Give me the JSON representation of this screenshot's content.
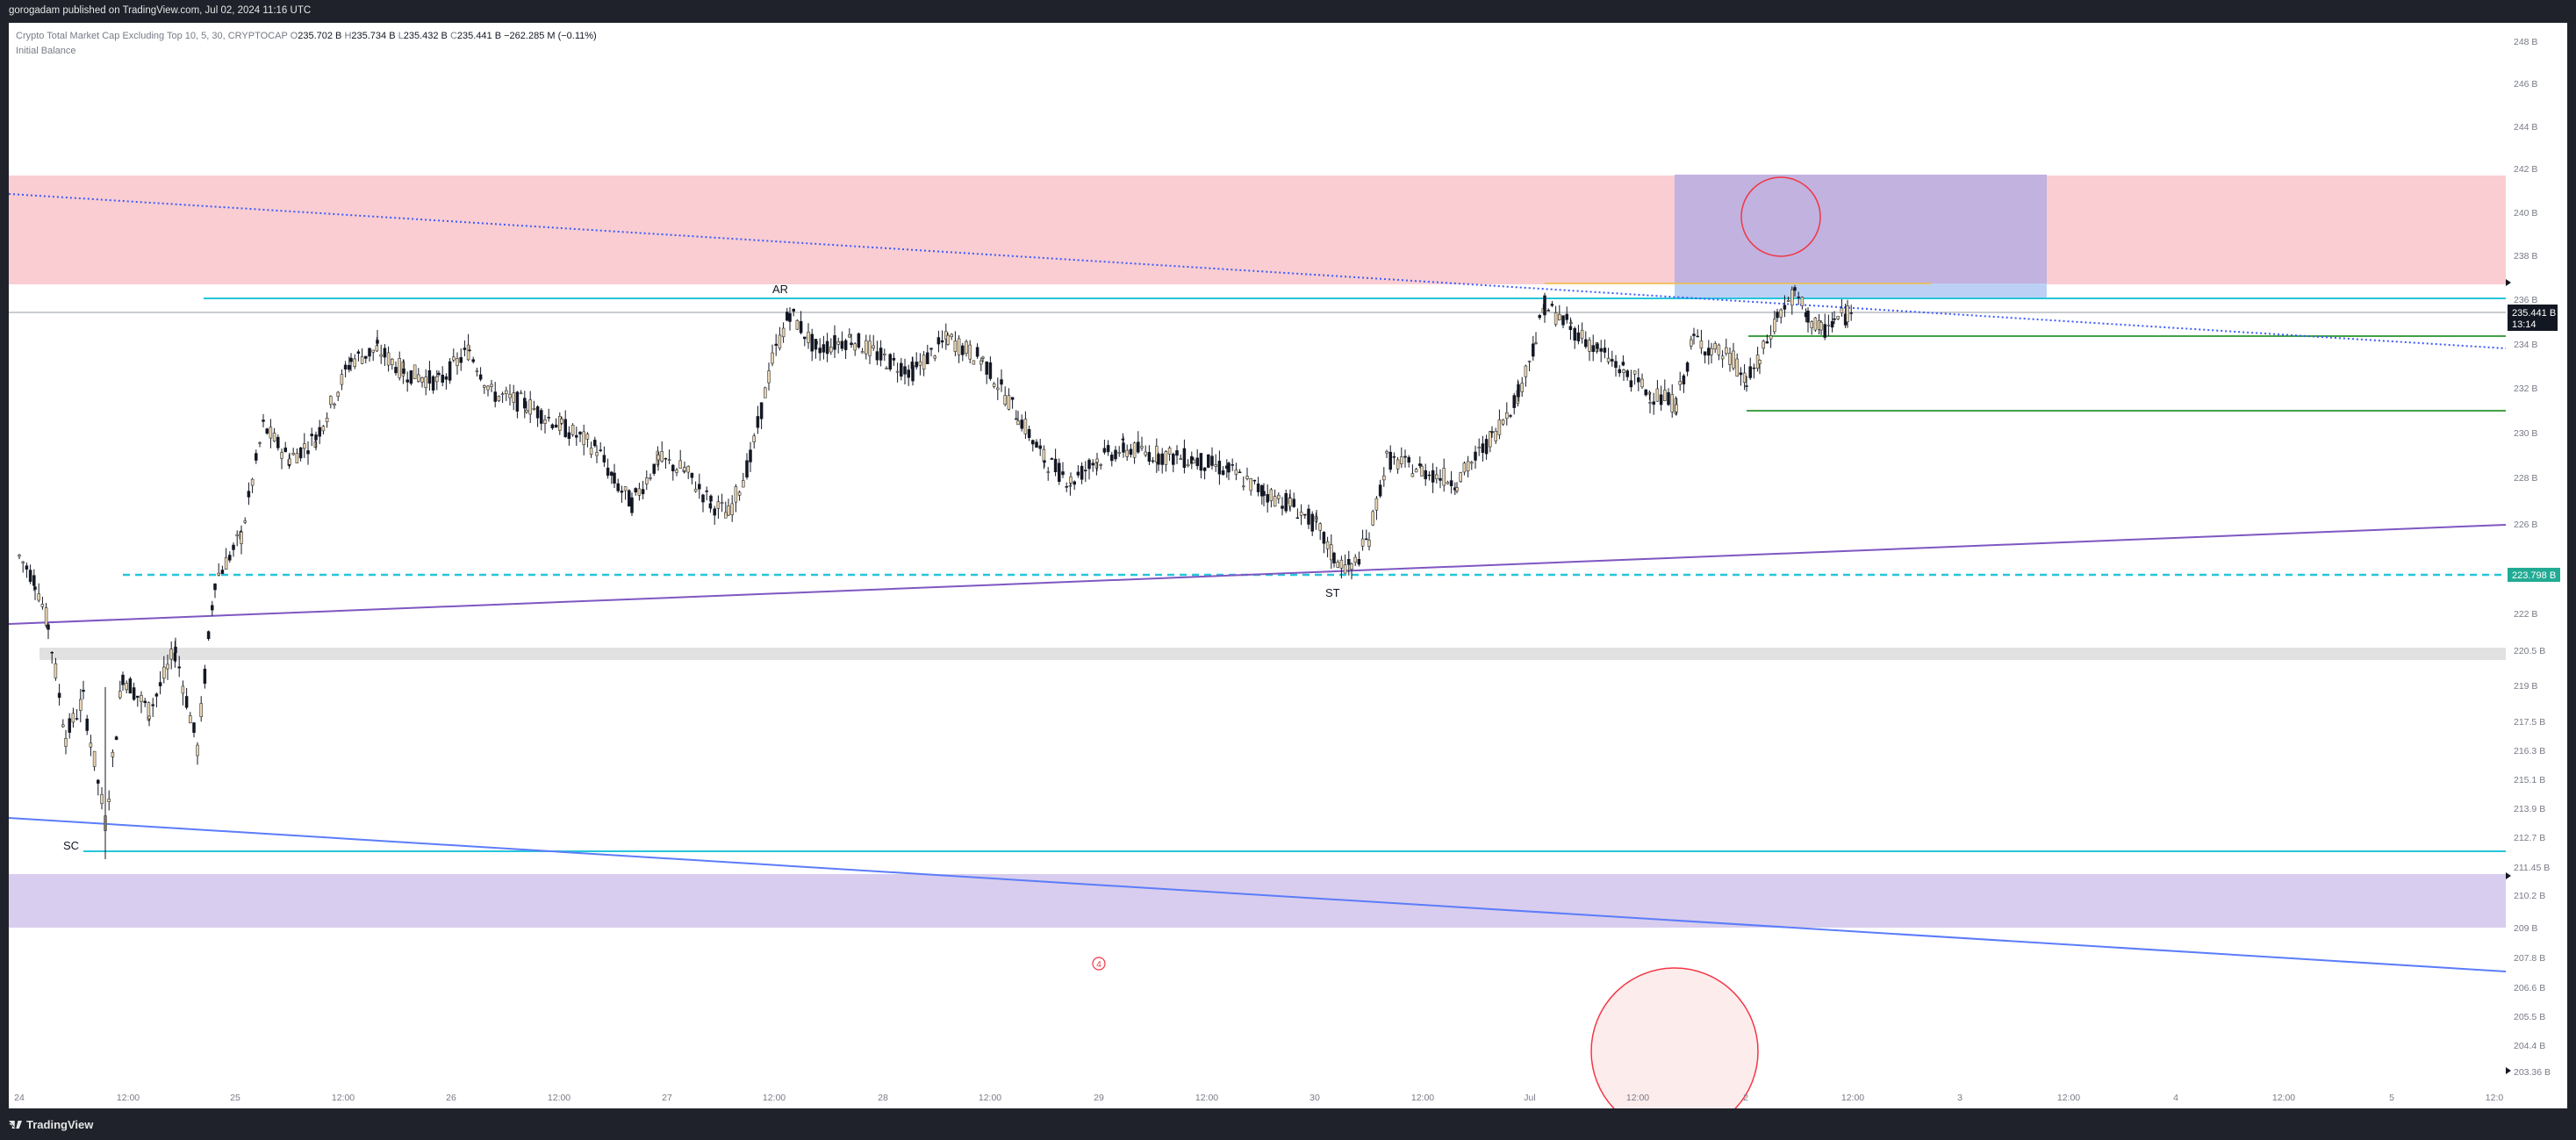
{
  "header": {
    "attribution": "gorogadam published on TradingView.com, Jul 02, 2024 11:16 UTC"
  },
  "legend": {
    "symbol": "Crypto Total Market Cap Excluding Top 10, 5, 30, CRYPTOCAP",
    "open_label": "O",
    "open": "235.702 B",
    "high_label": "H",
    "high": "235.734 B",
    "low_label": "L",
    "low": "235.432 B",
    "close_label": "C",
    "close": "235.441 B",
    "change": "−262.285 M (−0.11%)",
    "indicator": "Initial Balance"
  },
  "price_axis": {
    "ticks": [
      "248 B",
      "246 B",
      "244 B",
      "242 B",
      "240 B",
      "238 B",
      "236 B",
      "234 B",
      "232 B",
      "230 B",
      "228 B",
      "226 B",
      "222 B",
      "220.5 B",
      "219 B",
      "217.5 B",
      "216.3 B",
      "215.1 B",
      "213.9 B",
      "212.7 B",
      "211.45 B",
      "210.2 B",
      "209 B",
      "207.8 B",
      "206.6 B",
      "205.5 B",
      "204.4 B",
      "203.36 B"
    ],
    "current_price": "235.441 B",
    "countdown": "13:14",
    "level_label": "223.798 B"
  },
  "time_axis": {
    "ticks": [
      "24",
      "12:00",
      "25",
      "12:00",
      "26",
      "12:00",
      "27",
      "12:00",
      "28",
      "12:00",
      "29",
      "12:00",
      "30",
      "12:00",
      "Jul",
      "12:00",
      "2",
      "12:00",
      "3",
      "12:00",
      "4",
      "12:00",
      "5",
      "12:0"
    ]
  },
  "annotations": {
    "ar": "AR",
    "st": "ST",
    "sc": "SC",
    "circle_num": "4"
  },
  "footer": {
    "brand": "TradingView"
  },
  "colors": {
    "resistance_zone": "#f9cdd1",
    "support_zone": "#d8cdee",
    "blue_box": "#c0b1de",
    "range_line": "#26c6da",
    "green_level": "#43a047",
    "trend_upper": "#3d5afe",
    "trend_lower": "#7e57c2",
    "candle": "#131722",
    "label_bg": "#22ab94"
  },
  "chart_data": {
    "type": "candlestick",
    "title": "Crypto Total Market Cap Excluding Top 10, 5, 30, CRYPTOCAP",
    "interval": "30",
    "x": [
      "Jun 24",
      "Jun 24 12:00",
      "Jun 25",
      "Jun 25 12:00",
      "Jun 26",
      "Jun 26 12:00",
      "Jun 27",
      "Jun 27 12:00",
      "Jun 28",
      "Jun 28 12:00",
      "Jun 29",
      "Jun 29 12:00",
      "Jun 30",
      "Jun 30 12:00",
      "Jul 1",
      "Jul 1 12:00",
      "Jul 2",
      "Jul 2 11:00"
    ],
    "close_path": [
      224.5,
      218.0,
      224.5,
      232.5,
      233.0,
      231.0,
      227.5,
      234.5,
      234.0,
      233.5,
      230.0,
      228.0,
      224.0,
      229.5,
      235.0,
      233.5,
      232.0,
      235.441
    ],
    "last": {
      "open": 235.702,
      "high": 235.734,
      "low": 235.432,
      "close": 235.441
    },
    "levels": [
      {
        "name": "range_high",
        "value": 236.3
      },
      {
        "name": "range_low_dashed",
        "value": 223.798
      },
      {
        "name": "green_upper",
        "value": 234.6
      },
      {
        "name": "green_lower",
        "value": 231.1
      },
      {
        "name": "sc_low",
        "value": 212.0
      }
    ],
    "zones": [
      {
        "name": "resistance",
        "from": 236.5,
        "to": 242.0
      },
      {
        "name": "grey_band",
        "from": 220.2,
        "to": 220.8
      },
      {
        "name": "support",
        "from": 209.0,
        "to": 211.2
      }
    ],
    "yrange": [
      203.0,
      248.5
    ]
  }
}
